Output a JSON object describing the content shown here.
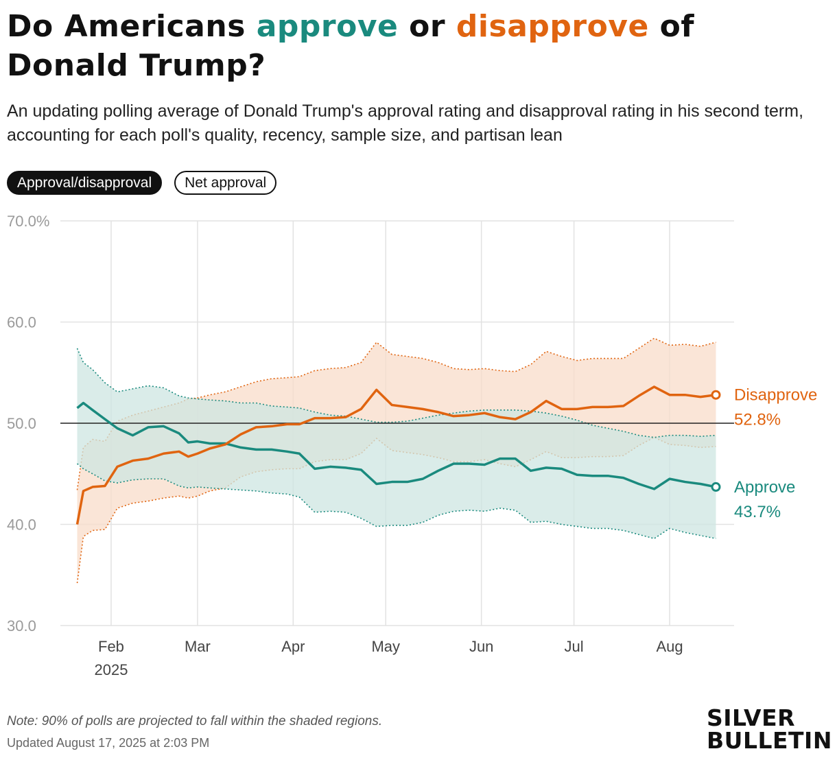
{
  "title": {
    "part1": "Do Americans ",
    "approve": "approve",
    "part2": " or ",
    "disapprove": "disapprove",
    "part3": " of Donald Trump?"
  },
  "subtitle": "An updating polling average of Donald Trump's approval rating and disapproval rating in his second term, accounting for each poll's quality, recency, sample size, and partisan lean",
  "toggles": {
    "approval_disapproval": "Approval/disapproval",
    "net_approval": "Net approval"
  },
  "colors": {
    "approve": "#1a8a7e",
    "disapprove": "#e06410",
    "approve_band": "#cde6e2",
    "disapprove_band": "#f8dcc9"
  },
  "chart_data": {
    "type": "line",
    "y_ticks": [
      "70.0%",
      "60.0",
      "50.0",
      "40.0",
      "30.0"
    ],
    "y_tick_values": [
      70,
      60,
      50,
      40,
      30
    ],
    "ylim": [
      30,
      70
    ],
    "xlim": [
      "2025-01-20",
      "2025-08-17"
    ],
    "x_ticks": [
      {
        "date": "2025-02-01",
        "label": "Feb",
        "sublabel": "2025"
      },
      {
        "date": "2025-03-01",
        "label": "Mar",
        "sublabel": ""
      },
      {
        "date": "2025-04-01",
        "label": "Apr",
        "sublabel": ""
      },
      {
        "date": "2025-05-01",
        "label": "May",
        "sublabel": ""
      },
      {
        "date": "2025-06-01",
        "label": "Jun",
        "sublabel": ""
      },
      {
        "date": "2025-07-01",
        "label": "Jul",
        "sublabel": ""
      },
      {
        "date": "2025-08-01",
        "label": "Aug",
        "sublabel": ""
      }
    ],
    "reference_line": 50,
    "grid": true,
    "x": [
      "2025-01-21",
      "2025-01-23",
      "2025-01-26",
      "2025-01-30",
      "2025-02-03",
      "2025-02-08",
      "2025-02-13",
      "2025-02-18",
      "2025-02-23",
      "2025-02-26",
      "2025-03-01",
      "2025-03-05",
      "2025-03-10",
      "2025-03-15",
      "2025-03-20",
      "2025-03-25",
      "2025-03-30",
      "2025-04-03",
      "2025-04-08",
      "2025-04-13",
      "2025-04-18",
      "2025-04-23",
      "2025-04-28",
      "2025-05-03",
      "2025-05-08",
      "2025-05-13",
      "2025-05-18",
      "2025-05-23",
      "2025-05-28",
      "2025-06-02",
      "2025-06-07",
      "2025-06-12",
      "2025-06-17",
      "2025-06-22",
      "2025-06-27",
      "2025-07-02",
      "2025-07-07",
      "2025-07-12",
      "2025-07-17",
      "2025-07-22",
      "2025-07-27",
      "2025-08-01",
      "2025-08-06",
      "2025-08-11",
      "2025-08-16"
    ],
    "series": [
      {
        "name": "Approve",
        "label": "Approve",
        "value_label": "43.7%",
        "color": "#1a8a7e",
        "values": [
          51.5,
          52.0,
          51.3,
          50.4,
          49.5,
          48.8,
          49.6,
          49.7,
          49.0,
          48.1,
          48.2,
          48.0,
          48.0,
          47.6,
          47.4,
          47.4,
          47.2,
          47.0,
          45.5,
          45.7,
          45.6,
          45.4,
          44.0,
          44.2,
          44.2,
          44.5,
          45.3,
          46.0,
          46.0,
          45.9,
          46.5,
          46.5,
          45.3,
          45.6,
          45.5,
          44.9,
          44.8,
          44.8,
          44.6,
          44.0,
          43.5,
          44.5,
          44.2,
          44.0,
          43.7
        ],
        "upper": [
          57.4,
          56.0,
          55.3,
          54.0,
          53.1,
          53.4,
          53.7,
          53.5,
          52.7,
          52.5,
          52.4,
          52.3,
          52.2,
          52.0,
          52.0,
          51.7,
          51.6,
          51.5,
          51.1,
          50.8,
          50.7,
          50.4,
          50.1,
          50.1,
          50.2,
          50.5,
          50.8,
          51.0,
          51.2,
          51.3,
          51.3,
          51.3,
          51.2,
          51.0,
          50.7,
          50.3,
          49.8,
          49.5,
          49.2,
          48.8,
          48.6,
          48.8,
          48.8,
          48.7,
          48.8
        ],
        "lower": [
          46.0,
          45.5,
          45.0,
          44.3,
          44.1,
          44.4,
          44.5,
          44.5,
          43.8,
          43.6,
          43.7,
          43.6,
          43.5,
          43.4,
          43.3,
          43.1,
          43.0,
          42.7,
          41.2,
          41.3,
          41.2,
          40.6,
          39.8,
          39.9,
          39.9,
          40.2,
          40.9,
          41.3,
          41.4,
          41.3,
          41.6,
          41.4,
          40.2,
          40.3,
          40.0,
          39.8,
          39.6,
          39.6,
          39.4,
          39.0,
          38.6,
          39.6,
          39.2,
          38.9,
          38.6
        ]
      },
      {
        "name": "Disapprove",
        "label": "Disapprove",
        "value_label": "52.8%",
        "color": "#e06410",
        "values": [
          40.0,
          43.3,
          43.7,
          43.8,
          45.7,
          46.3,
          46.5,
          47.0,
          47.2,
          46.7,
          47.0,
          47.5,
          47.9,
          48.9,
          49.6,
          49.7,
          49.9,
          49.9,
          50.5,
          50.5,
          50.6,
          51.4,
          53.3,
          51.8,
          51.6,
          51.4,
          51.1,
          50.7,
          50.8,
          51.0,
          50.6,
          50.4,
          51.1,
          52.2,
          51.4,
          51.4,
          51.6,
          51.6,
          51.7,
          52.7,
          53.6,
          52.8,
          52.8,
          52.6,
          52.8
        ],
        "upper": [
          43.4,
          47.6,
          48.4,
          48.2,
          50.2,
          50.8,
          51.2,
          51.6,
          52.0,
          52.4,
          52.5,
          52.8,
          53.1,
          53.6,
          54.1,
          54.4,
          54.5,
          54.6,
          55.2,
          55.4,
          55.5,
          56.0,
          58.0,
          56.8,
          56.6,
          56.4,
          56.0,
          55.4,
          55.3,
          55.4,
          55.2,
          55.1,
          55.8,
          57.1,
          56.6,
          56.2,
          56.4,
          56.4,
          56.4,
          57.4,
          58.4,
          57.7,
          57.8,
          57.6,
          58.0
        ],
        "lower": [
          34.2,
          38.8,
          39.4,
          39.5,
          41.6,
          42.1,
          42.3,
          42.6,
          42.8,
          42.6,
          42.8,
          43.3,
          43.6,
          44.7,
          45.2,
          45.4,
          45.5,
          45.5,
          46.2,
          46.4,
          46.4,
          47.0,
          48.5,
          47.3,
          47.1,
          46.9,
          46.6,
          46.2,
          46.2,
          46.4,
          46.0,
          45.7,
          46.4,
          47.2,
          46.6,
          46.6,
          46.7,
          46.7,
          46.8,
          47.8,
          48.6,
          47.9,
          47.8,
          47.6,
          47.7
        ]
      }
    ]
  },
  "note": "Note: 90% of polls are projected to fall within the shaded regions.",
  "updated": "Updated August 17, 2025 at 2:03 PM",
  "logo": {
    "line1": "SILVER",
    "line2": "BULLETIN"
  }
}
